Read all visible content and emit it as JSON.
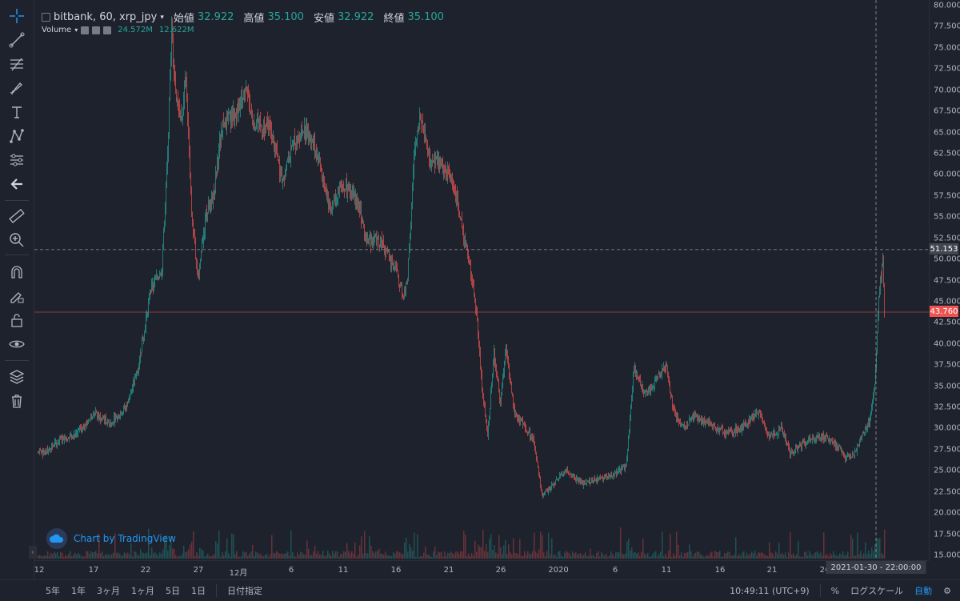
{
  "legend": {
    "symbol": "bitbank, 60, xrp_jpy",
    "open_label": "始値",
    "open_value": "32.922",
    "high_label": "高値",
    "high_value": "35.100",
    "low_label": "安値",
    "low_value": "32.922",
    "close_label": "終値",
    "close_value": "35.100"
  },
  "volume": {
    "label": "Volume",
    "value1": "24.572M",
    "value2": "12.622M"
  },
  "watermark": "Chart by TradingView",
  "price_axis": [
    "80.000",
    "77.500",
    "75.000",
    "72.500",
    "70.000",
    "67.500",
    "65.000",
    "62.500",
    "60.000",
    "57.500",
    "55.000",
    "52.500",
    "50.000",
    "47.500",
    "45.000",
    "42.500",
    "40.000",
    "37.500",
    "35.000",
    "32.500",
    "30.000",
    "27.500",
    "25.000",
    "22.500",
    "20.000",
    "17.500",
    "15.000"
  ],
  "time_axis": [
    "12",
    "17",
    "22",
    "27",
    "12月",
    "6",
    "11",
    "16",
    "21",
    "26",
    "2020",
    "6",
    "11",
    "16",
    "21",
    "26"
  ],
  "crosshair_price": "51.153",
  "last_price": "43.760",
  "crosshair_time": "2021-01-30 - 22:00:00",
  "bottom_bar": {
    "ranges": [
      "5年",
      "1年",
      "3ヶ月",
      "1ヶ月",
      "5日",
      "1日"
    ],
    "goto_date": "日付指定",
    "clock": "10:49:11 (UTC+9)",
    "percent": "%",
    "log_scale": "ログスケール",
    "auto": "自動"
  },
  "colors": {
    "up": "#26a69a",
    "down": "#ef5350",
    "background": "#1e222d",
    "accent": "#2196f3"
  },
  "chart_data": {
    "type": "candlestick",
    "price_range": [
      15,
      80
    ],
    "anchors": [
      [
        0,
        27.1
      ],
      [
        10,
        27.3
      ],
      [
        30,
        28.8
      ],
      [
        50,
        29.5
      ],
      [
        70,
        31.8
      ],
      [
        90,
        30.6
      ],
      [
        110,
        32.5
      ],
      [
        125,
        37.0
      ],
      [
        140,
        46.0
      ],
      [
        155,
        49.0
      ],
      [
        162,
        62.0
      ],
      [
        167,
        77.0
      ],
      [
        172,
        70.0
      ],
      [
        180,
        66.0
      ],
      [
        185,
        72.0
      ],
      [
        192,
        55.0
      ],
      [
        200,
        48.0
      ],
      [
        210,
        55.0
      ],
      [
        220,
        58.0
      ],
      [
        230,
        66.0
      ],
      [
        245,
        67.0
      ],
      [
        260,
        70.0
      ],
      [
        270,
        66.0
      ],
      [
        290,
        65.5
      ],
      [
        305,
        59.5
      ],
      [
        320,
        64.0
      ],
      [
        335,
        65.5
      ],
      [
        350,
        62.0
      ],
      [
        365,
        56.0
      ],
      [
        380,
        59.0
      ],
      [
        400,
        57.0
      ],
      [
        410,
        52.5
      ],
      [
        430,
        52.0
      ],
      [
        450,
        48.0
      ],
      [
        457,
        45.5
      ],
      [
        462,
        48.0
      ],
      [
        470,
        62.0
      ],
      [
        478,
        67.0
      ],
      [
        490,
        62.0
      ],
      [
        505,
        61.0
      ],
      [
        520,
        59.0
      ],
      [
        530,
        53.5
      ],
      [
        540,
        49.0
      ],
      [
        548,
        44.0
      ],
      [
        555,
        35.0
      ],
      [
        562,
        29.0
      ],
      [
        570,
        39.0
      ],
      [
        578,
        33.0
      ],
      [
        585,
        39.5
      ],
      [
        595,
        32.0
      ],
      [
        610,
        30.0
      ],
      [
        620,
        28.5
      ],
      [
        630,
        22.0
      ],
      [
        645,
        23.5
      ],
      [
        660,
        25.0
      ],
      [
        680,
        23.5
      ],
      [
        700,
        24.0
      ],
      [
        720,
        24.5
      ],
      [
        735,
        25.5
      ],
      [
        745,
        37.0
      ],
      [
        760,
        34.0
      ],
      [
        775,
        36.0
      ],
      [
        785,
        37.5
      ],
      [
        795,
        32.0
      ],
      [
        805,
        30.0
      ],
      [
        820,
        31.5
      ],
      [
        840,
        30.5
      ],
      [
        860,
        29.5
      ],
      [
        880,
        30.0
      ],
      [
        900,
        32.0
      ],
      [
        915,
        29.0
      ],
      [
        930,
        30.0
      ],
      [
        940,
        27.0
      ],
      [
        960,
        28.5
      ],
      [
        980,
        29.0
      ],
      [
        1000,
        28.0
      ],
      [
        1010,
        26.5
      ],
      [
        1020,
        27.0
      ],
      [
        1030,
        29.0
      ],
      [
        1040,
        31.0
      ],
      [
        1046,
        35.0
      ],
      [
        1052,
        47.0
      ],
      [
        1056,
        50.0
      ],
      [
        1058,
        43.76
      ]
    ],
    "crosshair_price": 51.153,
    "last_price": 43.76
  }
}
